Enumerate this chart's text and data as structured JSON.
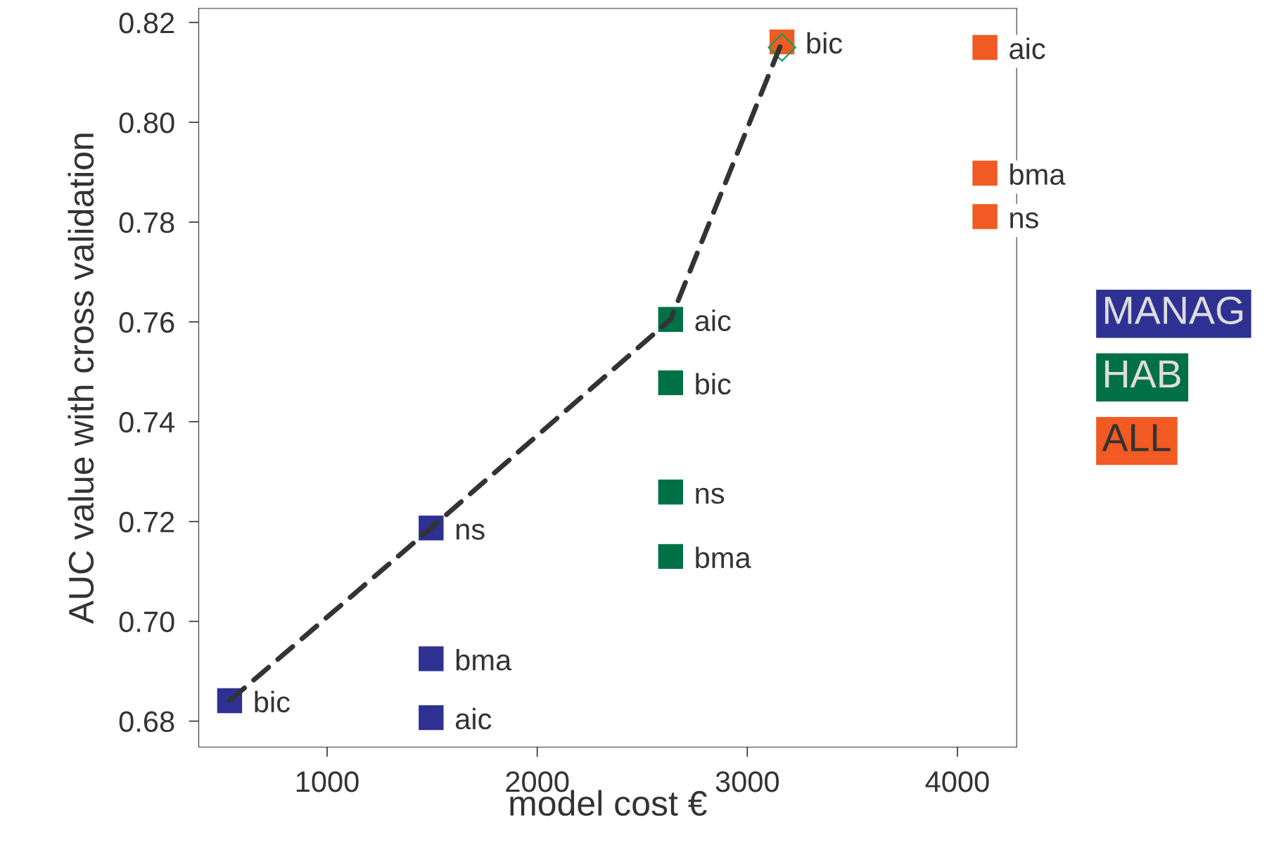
{
  "chart_data": {
    "type": "scatter",
    "xlabel": "model cost €",
    "ylabel": "AUC value with cross validation",
    "xlim": [
      389,
      4282
    ],
    "ylim": [
      0.6748,
      0.8228
    ],
    "xticks": [
      1000,
      2000,
      3000,
      4000
    ],
    "yticks": [
      {
        "value": 0.68,
        "label": "0.68"
      },
      {
        "value": 0.7,
        "label": "0.70"
      },
      {
        "value": 0.72,
        "label": "0.72"
      },
      {
        "value": 0.74,
        "label": "0.74"
      },
      {
        "value": 0.76,
        "label": "0.76"
      },
      {
        "value": 0.78,
        "label": "0.78"
      },
      {
        "value": 0.8,
        "label": "0.80"
      },
      {
        "value": 0.82,
        "label": "0.82"
      }
    ],
    "grid": false,
    "legend": "right",
    "marker": "square",
    "series": [
      {
        "type": "line",
        "color": "#333333",
        "line_style": "dashed",
        "marker": "none",
        "x": [
          536,
          1495,
          2635,
          3165
        ],
        "values": [
          0.6841,
          0.7187,
          0.7605,
          0.8161
        ]
      },
      {
        "type": "scatter",
        "color": "#00a651",
        "marker": "diamond",
        "x": [
          3165
        ],
        "values": [
          0.815
        ]
      },
      {
        "name": "MANAG",
        "color": "#2e3192",
        "x": [
          536,
          1495,
          1495,
          1495
        ],
        "values": [
          0.6841,
          0.7187,
          0.6925,
          0.6807
        ],
        "value_labels": [
          "bic",
          "ns",
          "bma",
          "aic"
        ]
      },
      {
        "name": "HAB",
        "color": "#007046",
        "x": [
          2635,
          2635,
          2635,
          2635
        ],
        "values": [
          0.7605,
          0.7478,
          0.7259,
          0.713
        ],
        "value_labels": [
          "aic",
          "bic",
          "ns",
          "bma"
        ]
      },
      {
        "name": "ALL",
        "color": "#f15a22",
        "x": [
          3165,
          4131,
          4131,
          4131
        ],
        "values": [
          0.8161,
          0.815,
          0.7898,
          0.7811
        ],
        "value_labels": [
          "bic",
          "aic",
          "bma",
          "ns"
        ]
      }
    ]
  }
}
